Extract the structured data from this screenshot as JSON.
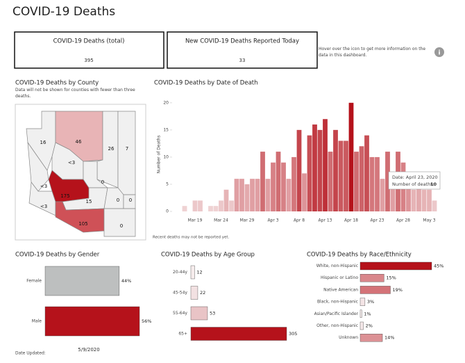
{
  "header": {
    "title": "COVID-19 Deaths",
    "date_label": "Date Updated:",
    "date": "5/9/2020",
    "info": "Hover over the icon to get more information on the data in this dashboard."
  },
  "kpis": [
    {
      "label": "COVID-19 Deaths (total)",
      "value": 395
    },
    {
      "label": "New COVID-19 Deaths Reported Today",
      "value": 33
    }
  ],
  "county_map": {
    "title": "COVID-19 Deaths by County",
    "subtitle": "Data will not be shown for counties with fewer than three deaths.",
    "counties": [
      {
        "label": "16",
        "color": "#f0f0f0"
      },
      {
        "label": "46",
        "color": "#e8b4b6"
      },
      {
        "label": "26",
        "color": "#f0f0f0"
      },
      {
        "label": "7",
        "color": "#f0f0f0"
      },
      {
        "label": "<3",
        "color": "#f0f0f0"
      },
      {
        "label": "<3",
        "color": "#f0f0f0"
      },
      {
        "label": "175",
        "color": "#b5121b"
      },
      {
        "label": "0",
        "color": "#f0f0f0"
      },
      {
        "label": "15",
        "color": "#f0f0f0"
      },
      {
        "label": "0",
        "color": "#f0f0f0"
      },
      {
        "label": "0",
        "color": "#f0f0f0"
      },
      {
        "label": "<3",
        "color": "#f0f0f0"
      },
      {
        "label": "105",
        "color": "#cf5157"
      },
      {
        "label": "0",
        "color": "#f0f0f0"
      }
    ]
  },
  "chart_data": [
    {
      "type": "bar",
      "title": "COVID-19 Deaths by Date of Death",
      "y_label": "Number of Deaths",
      "categories": [
        null,
        null,
        "Mar 19",
        null,
        null,
        null,
        null,
        "Mar 24",
        null,
        null,
        null,
        null,
        "Mar 29",
        null,
        null,
        null,
        null,
        "Apr 3",
        null,
        null,
        null,
        null,
        "Apr 8",
        null,
        null,
        null,
        null,
        "Apr 13",
        null,
        null,
        null,
        null,
        "Apr 18",
        null,
        null,
        null,
        null,
        "Apr 23",
        null,
        null,
        null,
        null,
        "Apr 28",
        null,
        null,
        null,
        null,
        "May 3",
        null
      ],
      "values": [
        1,
        0,
        2,
        2,
        0,
        1,
        1,
        2,
        4,
        2,
        6,
        6,
        5,
        6,
        6,
        11,
        6,
        9,
        11,
        9,
        6,
        10,
        15,
        7,
        14,
        16,
        15,
        17,
        11,
        15,
        13,
        13,
        20,
        11,
        12,
        14,
        10,
        10,
        6,
        11,
        6,
        11,
        9,
        7,
        4,
        5,
        4,
        4,
        2
      ],
      "ylim": [
        0,
        21
      ],
      "yticks": [
        0,
        5,
        10,
        15,
        20
      ],
      "color_low": "#f2dcdd",
      "color_high": "#b5121b",
      "tooltip": {
        "date": "Date: April 23, 2020",
        "label": "Number of deaths:",
        "value": 10
      },
      "footnote": "Recent deaths may not be reported yet."
    },
    {
      "type": "hbar",
      "title": "COVID-19 Deaths by Gender",
      "categories": [
        "Female",
        "Male"
      ],
      "values": [
        44,
        56
      ],
      "value_labels": [
        "44%",
        "56%"
      ],
      "colors": [
        "#bdbfbf",
        "#b5121b"
      ]
    },
    {
      "type": "hbar",
      "title": "COVID-19 Deaths by Age Group",
      "categories": [
        "20-44y",
        "45-54y",
        "55-64y",
        "65+"
      ],
      "values": [
        12,
        22,
        53,
        305
      ],
      "colors": [
        "#f7eded",
        "#f2e1e2",
        "#e9c4c6",
        "#b5121b"
      ]
    },
    {
      "type": "hbar",
      "title": "COVID-19 Deaths by Race/Ethnicity",
      "categories": [
        "White, non-Hispanic",
        "Hispanic or Latino",
        "Native American",
        "Black, non-Hispanic",
        "Asian/Pacific Islander",
        "Other, non-Hispanic",
        "Unknown"
      ],
      "values": [
        45,
        15,
        19,
        3,
        1,
        2,
        14
      ],
      "value_labels": [
        "45%",
        "15%",
        "19%",
        "3%",
        "1%",
        "2%",
        "14%"
      ],
      "colors": [
        "#b5121b",
        "#d9878b",
        "#d47378",
        "#f4e5e6",
        "#f8eeee",
        "#f6e9ea",
        "#dc9195"
      ]
    }
  ]
}
